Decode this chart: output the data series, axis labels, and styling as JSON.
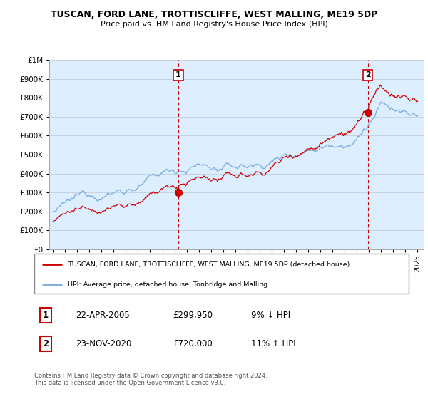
{
  "title": "TUSCAN, FORD LANE, TROTTISCLIFFE, WEST MALLING, ME19 5DP",
  "subtitle": "Price paid vs. HM Land Registry's House Price Index (HPI)",
  "ylim": [
    0,
    1000000
  ],
  "yticks": [
    0,
    100000,
    200000,
    300000,
    400000,
    500000,
    600000,
    700000,
    800000,
    900000,
    1000000
  ],
  "ytick_labels": [
    "£0",
    "£100K",
    "£200K",
    "£300K",
    "£400K",
    "£500K",
    "£600K",
    "£700K",
    "£800K",
    "£900K",
    "£1M"
  ],
  "x_start_year": 1995,
  "x_end_year": 2025,
  "hpi_color": "#7aabdc",
  "price_color": "#cc0000",
  "bg_color": "#ddeeff",
  "sale1_year": 2005.31,
  "sale1_price": 299950,
  "sale2_year": 2020.9,
  "sale2_price": 720000,
  "legend_line1": "TUSCAN, FORD LANE, TROTTISCLIFFE, WEST MALLING, ME19 5DP (detached house)",
  "legend_line2": "HPI: Average price, detached house, Tonbridge and Malling",
  "table_row1": [
    "1",
    "22-APR-2005",
    "£299,950",
    "9% ↓ HPI"
  ],
  "table_row2": [
    "2",
    "23-NOV-2020",
    "£720,000",
    "11% ↑ HPI"
  ],
  "footnote": "Contains HM Land Registry data © Crown copyright and database right 2024.\nThis data is licensed under the Open Government Licence v3.0.",
  "grid_color": "#c0cfe0",
  "vline_color": "#cc0000"
}
